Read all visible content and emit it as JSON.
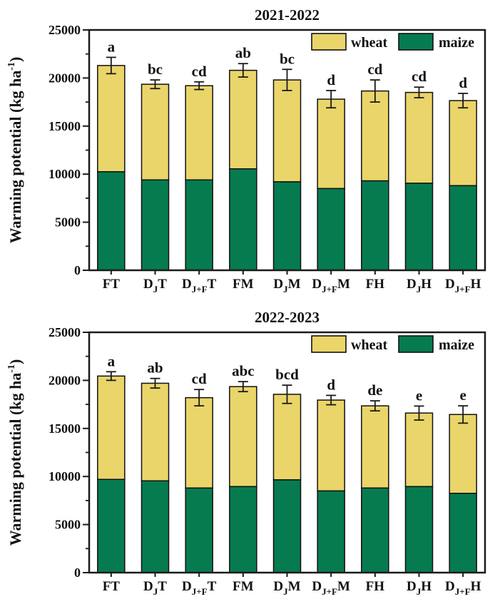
{
  "figure_title": "Warming potential stacked bar charts",
  "colors": {
    "wheat": "#EAD56A",
    "maize": "#077B50",
    "bar_stroke": "#111111",
    "axis": "#1a1a1a",
    "text": "#111111",
    "background": "#ffffff"
  },
  "legend": {
    "items": [
      {
        "label": "wheat",
        "series": "wheat"
      },
      {
        "label": "maize",
        "series": "maize"
      }
    ],
    "position": "top-right-inside"
  },
  "chart_data": [
    {
      "type": "bar",
      "stacked": true,
      "title": "2021-2022",
      "ylabel": "Warming potential (kg ha^{-1})",
      "xlabel": "",
      "ylim": [
        0,
        25000
      ],
      "yticks": [
        0,
        5000,
        10000,
        15000,
        20000,
        25000
      ],
      "ytick_labels": [
        "0",
        "5000",
        "10000",
        "15000",
        "20000",
        "25000"
      ],
      "minor_tick_step": 2500,
      "grid": false,
      "legend_position": "top-right",
      "categories": [
        "FT",
        "D_{J}T",
        "D_{J+F}T",
        "FM",
        "D_{J}M",
        "D_{J+F}M",
        "FH",
        "D_{J}H",
        "D_{J+F}H"
      ],
      "series": [
        {
          "name": "maize",
          "values": [
            10250,
            9400,
            9400,
            10550,
            9200,
            8500,
            9300,
            9050,
            8800
          ]
        },
        {
          "name": "wheat",
          "values": [
            11050,
            9950,
            9800,
            10250,
            10600,
            9300,
            9350,
            9450,
            8850
          ]
        }
      ],
      "totals": [
        21300,
        19350,
        19200,
        20800,
        19800,
        17800,
        18650,
        18500,
        17650
      ],
      "error_bars": [
        850,
        450,
        400,
        700,
        1100,
        900,
        1150,
        550,
        750
      ],
      "sig_letters": [
        "a",
        "bc",
        "cd",
        "ab",
        "bc",
        "d",
        "cd",
        "cd",
        "d"
      ]
    },
    {
      "type": "bar",
      "stacked": true,
      "title": "2022-2023",
      "ylabel": "Warming potential (kg ha^{-1})",
      "xlabel": "",
      "ylim": [
        0,
        25000
      ],
      "yticks": [
        0,
        5000,
        10000,
        15000,
        20000,
        25000
      ],
      "ytick_labels": [
        "0",
        "5000",
        "10000",
        "15000",
        "20000",
        "25000"
      ],
      "minor_tick_step": 2500,
      "grid": false,
      "legend_position": "top-right",
      "categories": [
        "FT",
        "D_{J}T",
        "D_{J+F}T",
        "FM",
        "D_{J}M",
        "D_{J+F}M",
        "FH",
        "D_{J}H",
        "D_{J+F}H"
      ],
      "series": [
        {
          "name": "maize",
          "values": [
            9700,
            9550,
            8800,
            8950,
            9650,
            8500,
            8800,
            8950,
            8250
          ]
        },
        {
          "name": "wheat",
          "values": [
            10750,
            10150,
            9400,
            10400,
            8900,
            9450,
            8550,
            7650,
            8200
          ]
        }
      ],
      "totals": [
        20450,
        19700,
        18200,
        19350,
        18550,
        17950,
        17350,
        16600,
        16450
      ],
      "error_bars": [
        450,
        500,
        850,
        520,
        950,
        490,
        520,
        730,
        900
      ],
      "sig_letters": [
        "a",
        "ab",
        "cd",
        "abc",
        "bcd",
        "d",
        "de",
        "e",
        "e"
      ]
    }
  ]
}
